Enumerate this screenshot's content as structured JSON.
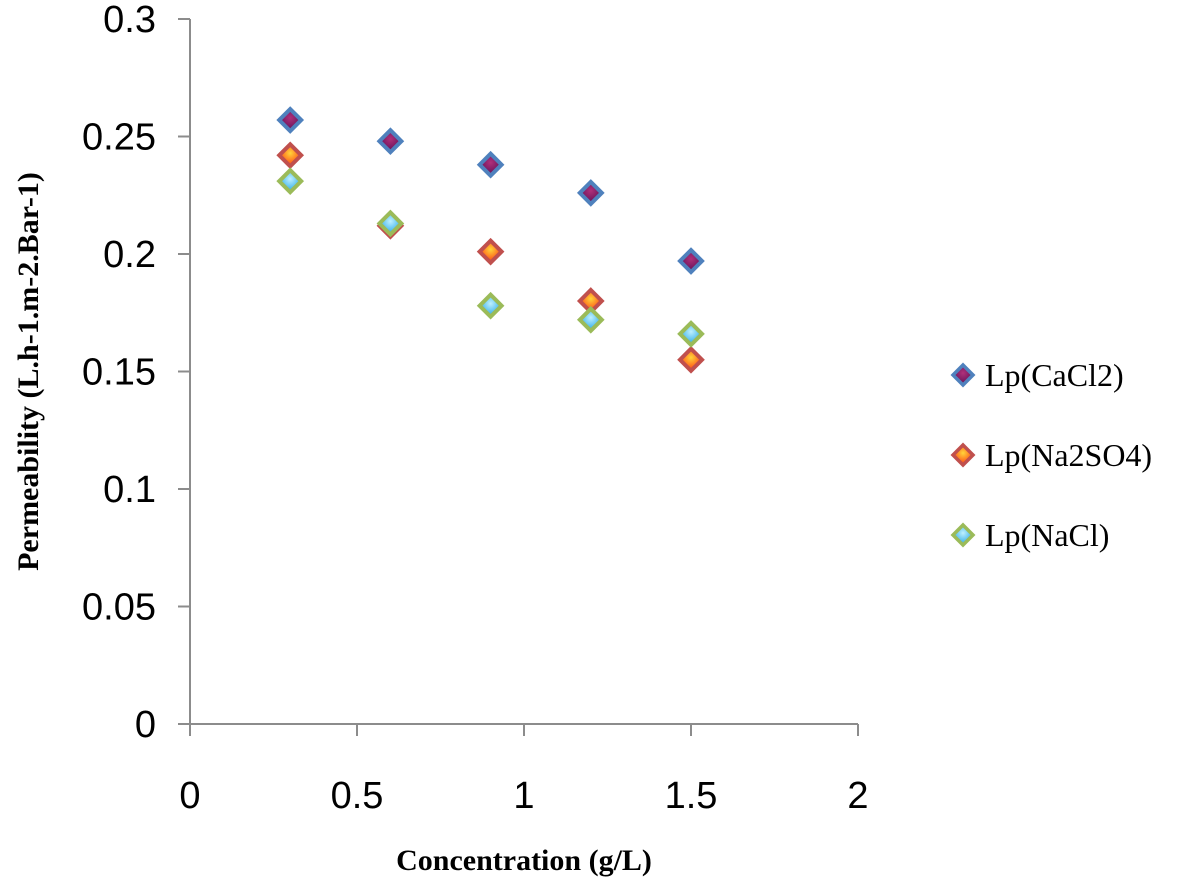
{
  "chart_data": {
    "type": "scatter",
    "xlabel": "Concentration (g/L)",
    "ylabel": "Permeability (L.h-1.m-2.Bar-1)",
    "xlim": [
      0,
      2
    ],
    "ylim": [
      0,
      0.3
    ],
    "x_ticks": [
      "0",
      "0.5",
      "1",
      "1.5",
      "2"
    ],
    "y_ticks": [
      "0",
      "0.05",
      "0.1",
      "0.15",
      "0.2",
      "0.25",
      "0.3"
    ],
    "grid": false,
    "legend_position": "right",
    "series": [
      {
        "name": "Lp(CaCl2)",
        "x": [
          0.3,
          0.6,
          0.9,
          1.2,
          1.5
        ],
        "y": [
          0.257,
          0.248,
          0.238,
          0.226,
          0.197
        ],
        "outline_color": "#4f81bd",
        "fill_light": "#b0307a",
        "fill_dark": "#5a0f55"
      },
      {
        "name": "Lp(Na2SO4)",
        "x": [
          0.3,
          0.6,
          0.9,
          1.2,
          1.5
        ],
        "y": [
          0.242,
          0.212,
          0.201,
          0.18,
          0.155
        ],
        "outline_color": "#c0504d",
        "fill_light": "#ffd43a",
        "fill_dark": "#ff3a10"
      },
      {
        "name": "Lp(NaCl)",
        "x": [
          0.3,
          0.6,
          0.9,
          1.2,
          1.5
        ],
        "y": [
          0.231,
          0.213,
          0.178,
          0.172,
          0.166
        ],
        "outline_color": "#9bbb59",
        "fill_light": "#bff0ff",
        "fill_dark": "#22a6e6"
      }
    ]
  }
}
